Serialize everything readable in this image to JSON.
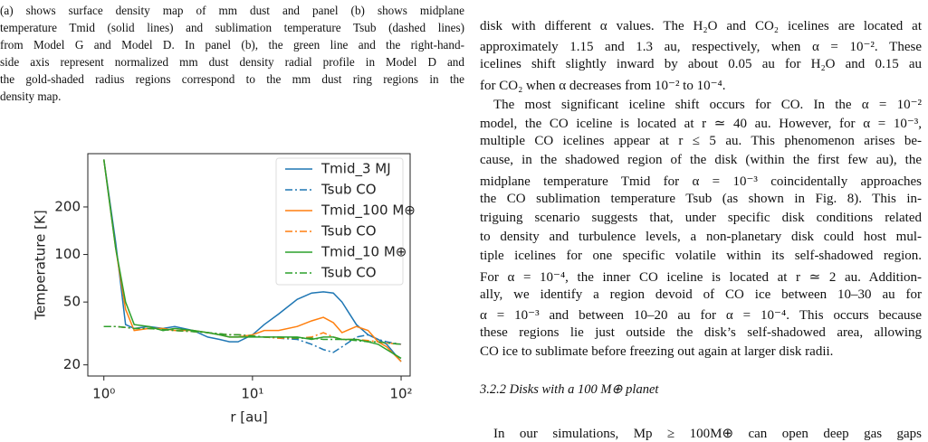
{
  "caption_lines": [
    "(a) shows surface density map of mm dust and panel (b) shows midplane",
    "temperature Tmid (solid lines) and sublimation temperature Tsub (dashed lines)",
    "from Model G and Model D. In panel (b), the green line and the right-hand-",
    "side axis represent normalized mm dust density radial profile in Model D and",
    "the gold-shaded radius regions correspond to the mm dust ring regions in the",
    "density map."
  ],
  "body_lines": [
    "disk with different α values. The H₂O and CO₂ icelines are located at",
    "approximately 1.15 and 1.3 au, respectively, when α = 10⁻². These",
    "icelines shift slightly inward by about 0.05 au for H₂O and 0.15 au",
    "for CO₂ when α decreases from 10⁻² to 10⁻⁴.",
    "The most significant iceline shift occurs for CO. In the α = 10⁻²",
    "model, the CO iceline is located at r ≃ 40 au. However, for α = 10⁻³,",
    "multiple CO icelines appear at r ≤ 5 au. This phenomenon arises be-",
    "cause, in the shadowed region of the disk (within the first few au), the",
    "midplane temperature Tmid for α = 10⁻³ coincidentally approaches",
    "the CO sublimation temperature Tsub (as shown in Fig. 8). This in-",
    "triguing scenario suggests that, under specific disk conditions related",
    "to density and turbulence levels, a non-planetary disk could host mul-",
    "tiple icelines for one specific volatile within its self-shadowed region.",
    "For α = 10⁻⁴, the inner CO iceline is located at r ≃ 2 au. Addition-",
    "ally, we identify a region devoid of CO ice between 10–30 au for",
    "α = 10⁻³ and between 10–20 au for α = 10⁻⁴. This occurs because",
    "these regions lie just outside the disk’s self-shadowed area, allowing",
    "CO ice to sublimate before freezing out again at larger disk radii."
  ],
  "section_heading": "3.2.2 Disks with a 100 M⊕ planet",
  "next_line": "In our simulations, Mp ≥ 100M⊕ can open deep gas gaps",
  "chart_data": {
    "type": "line",
    "log_x": true,
    "log_y": true,
    "x_label": "r [au]",
    "y_label": "Temperature [K]",
    "x": [
      1,
      1.2,
      1.4,
      1.6,
      2,
      2.5,
      3,
      4,
      5,
      6,
      7,
      8,
      10,
      12,
      15,
      20,
      25,
      30,
      35,
      40,
      50,
      60,
      70,
      80,
      100
    ],
    "xlim": [
      0.78,
      115
    ],
    "ylim": [
      17,
      435
    ],
    "xticks": [
      {
        "value": 1,
        "label": "10⁰"
      },
      {
        "value": 10,
        "label": "10¹"
      },
      {
        "value": 100,
        "label": "10²"
      }
    ],
    "yticks": [
      20,
      50,
      100,
      200
    ],
    "legend": "upper right",
    "series": [
      {
        "name": "Tmid_3 MJ",
        "color": "#1f77b4",
        "style": "solid",
        "values": [
          400,
          120,
          36,
          34,
          35,
          34,
          35,
          33,
          30,
          29,
          28,
          28,
          31,
          36,
          42,
          52,
          57,
          58,
          57,
          50,
          36,
          31,
          29,
          27,
          21
        ]
      },
      {
        "name": "Tsub CO",
        "color": "#1f77b4",
        "style": "dashdot",
        "values": [
          35,
          35,
          34.5,
          34,
          34,
          33.5,
          33,
          32.5,
          32,
          31.5,
          31,
          31,
          30.5,
          30,
          29.5,
          29,
          27,
          25,
          24,
          26,
          30,
          31,
          29,
          28,
          27
        ]
      },
      {
        "name": "Tmid_100 M⊕",
        "color": "#ff7f0e",
        "style": "solid",
        "values": [
          400,
          110,
          45,
          33,
          34,
          34,
          33,
          33,
          32,
          31,
          30,
          30,
          31,
          33,
          33,
          35,
          38,
          40,
          37,
          32,
          35,
          33,
          28,
          26,
          21
        ]
      },
      {
        "name": "Tsub CO",
        "color": "#ff7f0e",
        "style": "dashdot",
        "values": [
          35,
          35,
          34.5,
          34,
          34,
          33.5,
          33,
          32.5,
          32,
          31.5,
          31,
          31,
          30.5,
          30,
          29.5,
          29.5,
          30,
          32,
          30,
          29,
          29,
          28.5,
          28,
          27.5,
          27
        ]
      },
      {
        "name": "Tmid_10 M⊕",
        "color": "#2ca02c",
        "style": "solid",
        "values": [
          400,
          110,
          50,
          36,
          35,
          33,
          34,
          33,
          32,
          31,
          30,
          30,
          30,
          30,
          30,
          30,
          29,
          30,
          30,
          29,
          29,
          28,
          27,
          25,
          22
        ]
      },
      {
        "name": "Tsub CO",
        "color": "#2ca02c",
        "style": "dashdot",
        "values": [
          35,
          35,
          34.5,
          34,
          34,
          33.5,
          33,
          32.5,
          32,
          31.5,
          31,
          31,
          30.5,
          30,
          30,
          29.5,
          29.5,
          29,
          29,
          29,
          28.5,
          28,
          28,
          27.5,
          27
        ]
      }
    ]
  }
}
